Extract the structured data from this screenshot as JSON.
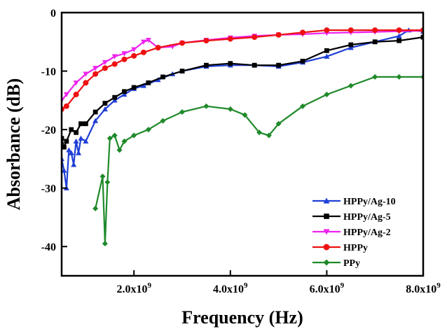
{
  "chart_data": {
    "type": "line",
    "title": "",
    "xlabel": "Frequency (Hz)",
    "ylabel": "Absorbance (dB)",
    "xlim": [
      500000000,
      8000000000
    ],
    "ylim": [
      -45,
      0
    ],
    "x_ticks": [
      {
        "value": 2000000000,
        "mantissa": "2.0x10",
        "exp": "9"
      },
      {
        "value": 4000000000,
        "mantissa": "4.0x10",
        "exp": "9"
      },
      {
        "value": 6000000000,
        "mantissa": "6.0x10",
        "exp": "9"
      },
      {
        "value": 8000000000,
        "mantissa": "8.0x10",
        "exp": "9"
      }
    ],
    "y_ticks": [
      {
        "value": 0,
        "label": "0"
      },
      {
        "value": -10,
        "label": "-10"
      },
      {
        "value": -20,
        "label": "-20"
      },
      {
        "value": -30,
        "label": "-30"
      },
      {
        "value": -40,
        "label": "-40"
      }
    ],
    "legend_position": "bottom-right",
    "series": [
      {
        "name": "HPPy/Ag-10",
        "color": "#1f3fd6",
        "marker": "triangle-up",
        "x": [
          500000000.0,
          550000000.0,
          600000000.0,
          650000000.0,
          700000000.0,
          750000000.0,
          800000000.0,
          850000000.0,
          900000000.0,
          1000000000.0,
          1200000000.0,
          1400000000.0,
          1600000000.0,
          1800000000.0,
          2000000000.0,
          2200000000.0,
          2500000000.0,
          2800000000.0,
          3000000000.0,
          3500000000.0,
          4000000000.0,
          4500000000.0,
          5000000000.0,
          5500000000.0,
          6000000000.0,
          6500000000.0,
          7000000000.0,
          7500000000.0,
          7700000000.0,
          8000000000.0
        ],
        "y": [
          -25,
          -27,
          -30,
          -23.5,
          -24,
          -26,
          -22,
          -24,
          -21.5,
          -22,
          -18.5,
          -16.5,
          -15,
          -14,
          -13,
          -12.5,
          -11.5,
          -10.5,
          -10,
          -9.2,
          -9,
          -9,
          -9.2,
          -8.5,
          -7.5,
          -6,
          -5,
          -4,
          -3,
          -3.2
        ]
      },
      {
        "name": "HPPy/Ag-5",
        "color": "#000000",
        "marker": "square",
        "x": [
          500000000.0,
          550000000.0,
          600000000.0,
          700000000.0,
          800000000.0,
          900000000.0,
          1000000000.0,
          1200000000.0,
          1400000000.0,
          1600000000.0,
          1800000000.0,
          2000000000.0,
          2300000000.0,
          2600000000.0,
          3000000000.0,
          3500000000.0,
          4000000000.0,
          4500000000.0,
          5000000000.0,
          5500000000.0,
          6000000000.0,
          6500000000.0,
          7000000000.0,
          7500000000.0,
          8000000000.0
        ],
        "y": [
          -21.5,
          -23,
          -22,
          -20,
          -20.5,
          -19,
          -19,
          -17,
          -15.5,
          -14.5,
          -13.5,
          -12.8,
          -12,
          -11,
          -10,
          -9,
          -8.7,
          -9,
          -9,
          -8.3,
          -6.5,
          -5.5,
          -5,
          -4.8,
          -4.2
        ]
      },
      {
        "name": "HPPy/Ag-2",
        "color": "#ee22ee",
        "marker": "triangle-down",
        "x": [
          500000000.0,
          600000000.0,
          800000000.0,
          1000000000.0,
          1200000000.0,
          1400000000.0,
          1600000000.0,
          1800000000.0,
          2000000000.0,
          2200000000.0,
          2300000000.0,
          2500000000.0,
          2800000000.0,
          3000000000.0,
          3500000000.0,
          4000000000.0,
          4500000000.0,
          5000000000.0,
          5500000000.0,
          6000000000.0,
          6500000000.0,
          7000000000.0,
          7500000000.0,
          8000000000.0
        ],
        "y": [
          -15,
          -14,
          -12,
          -10.5,
          -9.5,
          -8.5,
          -7.5,
          -7,
          -6.3,
          -5,
          -4.7,
          -6,
          -5.8,
          -5.2,
          -4.7,
          -4.3,
          -4,
          -3.8,
          -3.7,
          -3.5,
          -3.4,
          -3.3,
          -3.2,
          -3.1
        ]
      },
      {
        "name": "HPPy",
        "color": "#ee1111",
        "marker": "circle",
        "x": [
          500000000.0,
          600000000.0,
          800000000.0,
          1000000000.0,
          1200000000.0,
          1400000000.0,
          1600000000.0,
          1800000000.0,
          2000000000.0,
          2200000000.0,
          2500000000.0,
          3000000000.0,
          3500000000.0,
          4000000000.0,
          4500000000.0,
          5000000000.0,
          5500000000.0,
          6000000000.0,
          6500000000.0,
          7000000000.0,
          7500000000.0,
          8000000000.0
        ],
        "y": [
          -16.5,
          -16,
          -14,
          -12,
          -10.5,
          -9.5,
          -8.8,
          -8,
          -7.4,
          -6.8,
          -6,
          -5.2,
          -4.8,
          -4.5,
          -4.2,
          -3.8,
          -3.4,
          -3,
          -3,
          -3,
          -3,
          -3
        ]
      },
      {
        "name": "PPy",
        "color": "#1f8a2a",
        "marker": "diamond",
        "x": [
          1200000000.0,
          1350000000.0,
          1400000000.0,
          1450000000.0,
          1500000000.0,
          1600000000.0,
          1700000000.0,
          1800000000.0,
          2000000000.0,
          2300000000.0,
          2600000000.0,
          3000000000.0,
          3500000000.0,
          4000000000.0,
          4300000000.0,
          4600000000.0,
          4800000000.0,
          5000000000.0,
          5500000000.0,
          6000000000.0,
          6500000000.0,
          7000000000.0,
          7500000000.0,
          8000000000.0
        ],
        "y": [
          -33.5,
          -28,
          -39.5,
          -29,
          -21.5,
          -21,
          -23.5,
          -22,
          -21,
          -20,
          -18.5,
          -17,
          -16,
          -16.5,
          -17.5,
          -20.5,
          -21,
          -19,
          -16,
          -14,
          -12.5,
          -11,
          -11,
          -11
        ]
      }
    ]
  }
}
